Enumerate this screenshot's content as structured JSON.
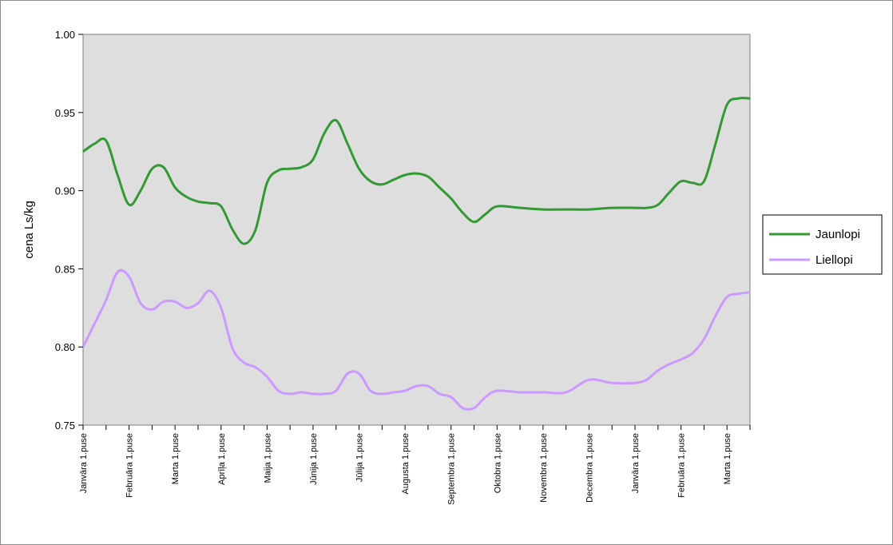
{
  "chart_data": {
    "type": "line",
    "title": "",
    "xlabel": "",
    "ylabel": "cena Ls/kg",
    "ylim": [
      0.75,
      1.0
    ],
    "yticks": [
      "0.75",
      "0.80",
      "0.85",
      "0.90",
      "0.95",
      "1.00"
    ],
    "grid": false,
    "legend_position": "right",
    "categories": [
      "Janvāra 1.puse",
      "Februāra 1.puse",
      "Marta 1.puse",
      "Aprīļa 1.puse",
      "Maija 1.puse",
      "Jūnija 1.puse",
      "Jūlija 1.puse",
      "Augusta 1.puse",
      "Septembra 1.puse",
      "Oktobra 1.puse",
      "Novembra 1.puse",
      "Decembra 1.puse",
      "Janvāra 1.puse",
      "Februāra 1.puse",
      "Marta 1.puse"
    ],
    "series": [
      {
        "name": "Jaunlopi",
        "color": "#339933",
        "x": [
          0,
          0.25,
          0.5,
          0.75,
          1,
          1.25,
          1.5,
          1.75,
          2,
          2.25,
          2.5,
          2.75,
          3,
          3.25,
          3.5,
          3.75,
          4,
          4.25,
          4.5,
          4.75,
          5,
          5.25,
          5.5,
          5.75,
          6,
          6.25,
          6.5,
          6.75,
          7,
          7.25,
          7.5,
          7.75,
          8,
          8.25,
          8.5,
          8.75,
          9,
          9.5,
          10,
          10.5,
          11,
          11.5,
          12,
          12.25,
          12.5,
          12.75,
          13,
          13.25,
          13.5,
          13.75,
          14,
          14.25,
          14.5
        ],
        "values": [
          0.925,
          0.93,
          0.932,
          0.91,
          0.891,
          0.9,
          0.914,
          0.915,
          0.902,
          0.896,
          0.893,
          0.892,
          0.89,
          0.875,
          0.866,
          0.875,
          0.905,
          0.913,
          0.914,
          0.915,
          0.92,
          0.937,
          0.945,
          0.93,
          0.914,
          0.906,
          0.904,
          0.907,
          0.91,
          0.911,
          0.909,
          0.902,
          0.895,
          0.886,
          0.88,
          0.885,
          0.89,
          0.889,
          0.888,
          0.888,
          0.888,
          0.889,
          0.889,
          0.889,
          0.891,
          0.899,
          0.906,
          0.905,
          0.906,
          0.93,
          0.955,
          0.959,
          0.959
        ]
      },
      {
        "name": "Liellopi",
        "color": "#cc99ff",
        "x": [
          0,
          0.25,
          0.5,
          0.75,
          1,
          1.25,
          1.5,
          1.75,
          2,
          2.25,
          2.5,
          2.75,
          3,
          3.25,
          3.5,
          3.75,
          4,
          4.25,
          4.5,
          4.75,
          5,
          5.25,
          5.5,
          5.75,
          6,
          6.25,
          6.5,
          6.75,
          7,
          7.25,
          7.5,
          7.75,
          8,
          8.25,
          8.5,
          8.75,
          9,
          9.5,
          10,
          10.5,
          11,
          11.5,
          12,
          12.25,
          12.5,
          12.75,
          13,
          13.25,
          13.5,
          13.75,
          14,
          14.25,
          14.5
        ],
        "values": [
          0.8,
          0.815,
          0.83,
          0.848,
          0.845,
          0.828,
          0.824,
          0.829,
          0.829,
          0.825,
          0.828,
          0.836,
          0.825,
          0.799,
          0.79,
          0.787,
          0.781,
          0.772,
          0.77,
          0.771,
          0.77,
          0.77,
          0.772,
          0.783,
          0.783,
          0.772,
          0.77,
          0.771,
          0.772,
          0.775,
          0.775,
          0.77,
          0.768,
          0.761,
          0.761,
          0.768,
          0.772,
          0.771,
          0.771,
          0.771,
          0.779,
          0.777,
          0.777,
          0.779,
          0.785,
          0.789,
          0.792,
          0.796,
          0.805,
          0.82,
          0.832,
          0.834,
          0.835
        ]
      }
    ]
  }
}
